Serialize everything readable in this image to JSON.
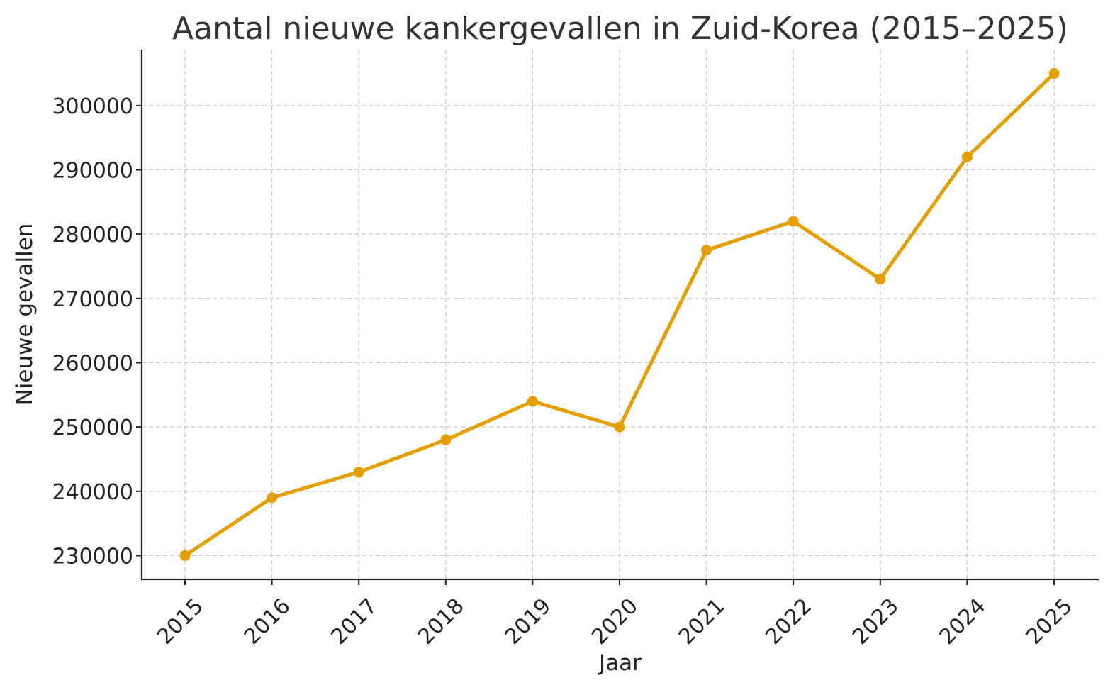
{
  "chart_data": {
    "type": "line",
    "title": "Aantal nieuwe kankergevallen in Zuid-Korea (2015–2025)",
    "xlabel": "Jaar",
    "ylabel": "Nieuwe gevallen",
    "x": [
      "2015",
      "2016",
      "2017",
      "2018",
      "2019",
      "2020",
      "2021",
      "2022",
      "2023",
      "2024",
      "2025"
    ],
    "series": [
      {
        "values": [
          230000,
          239000,
          243000,
          248000,
          254000,
          250000,
          277500,
          282000,
          273000,
          292000,
          305000
        ],
        "color": "#E69F00"
      }
    ],
    "yticks": [
      "230000",
      "240000",
      "250000",
      "260000",
      "270000",
      "280000",
      "290000",
      "300000"
    ],
    "ylim": [
      226300,
      308700
    ],
    "grid": true,
    "xtick_rotation": "45deg"
  }
}
